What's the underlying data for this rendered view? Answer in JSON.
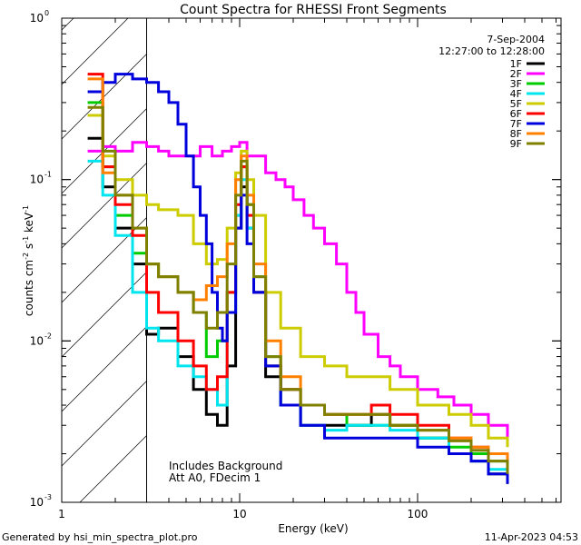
{
  "chart_data": {
    "type": "line",
    "title": "Count Spectra for RHESSI Front Segments",
    "xlabel": "Energy (keV)",
    "ylabel_main": "counts cm",
    "ylabel_exp1": "-2",
    "ylabel_s": " s",
    "ylabel_exp2": "-1",
    "ylabel_kev": " keV",
    "ylabel_exp3": "-1",
    "x_scale": "log",
    "y_scale": "log",
    "xlim": [
      1,
      640
    ],
    "ylim": [
      0.001,
      1
    ],
    "x_ticks": [
      {
        "value": 1,
        "label": "1"
      },
      {
        "value": 10,
        "label": "10"
      },
      {
        "value": 100,
        "label": "100"
      }
    ],
    "y_ticks": [
      {
        "value": 1,
        "base": "10",
        "exp": "0"
      },
      {
        "value": 0.1,
        "base": "10",
        "exp": "-1"
      },
      {
        "value": 0.01,
        "base": "10",
        "exp": "-2"
      },
      {
        "value": 0.001,
        "base": "10",
        "exp": "-3"
      }
    ],
    "hatched_region": [
      1,
      3
    ],
    "legend_placement": "top-right",
    "date": "7-Sep-2004",
    "time_range": "12:27:00 to 12:28:00",
    "annotation_line1": "Includes Background",
    "annotation_line2": "Att A0, FDecim 1",
    "footer_left": "Generated by hsi_min_spectra_plot.pro",
    "footer_right": "11-Apr-2023 04:53",
    "series": [
      {
        "name": "1F",
        "color": "#000000",
        "points": [
          [
            1.4,
            0.18
          ],
          [
            1.7,
            0.09
          ],
          [
            2.0,
            0.05
          ],
          [
            2.5,
            0.03
          ],
          [
            3.0,
            0.011
          ],
          [
            3.5,
            0.012
          ],
          [
            4.5,
            0.008
          ],
          [
            5.5,
            0.005
          ],
          [
            6.5,
            0.0035
          ],
          [
            7.5,
            0.003
          ],
          [
            8.5,
            0.007
          ],
          [
            9.5,
            0.05
          ],
          [
            10.2,
            0.09
          ],
          [
            11,
            0.05
          ],
          [
            12,
            0.02
          ],
          [
            14,
            0.006
          ],
          [
            17,
            0.004
          ],
          [
            22,
            0.003
          ],
          [
            30,
            0.003
          ],
          [
            40,
            0.003
          ],
          [
            55,
            0.0035
          ],
          [
            70,
            0.003
          ],
          [
            100,
            0.0025
          ],
          [
            150,
            0.002
          ],
          [
            200,
            0.0018
          ],
          [
            250,
            0.0015
          ],
          [
            320,
            0.0013
          ]
        ]
      },
      {
        "name": "2F",
        "color": "#ff00ff",
        "points": [
          [
            1.4,
            0.15
          ],
          [
            1.7,
            0.16
          ],
          [
            2.0,
            0.15
          ],
          [
            2.5,
            0.17
          ],
          [
            3.0,
            0.16
          ],
          [
            3.5,
            0.15
          ],
          [
            4,
            0.14
          ],
          [
            5,
            0.14
          ],
          [
            6,
            0.16
          ],
          [
            7,
            0.14
          ],
          [
            8,
            0.15
          ],
          [
            9,
            0.16
          ],
          [
            10,
            0.17
          ],
          [
            11,
            0.14
          ],
          [
            12,
            0.14
          ],
          [
            14,
            0.11
          ],
          [
            16,
            0.1
          ],
          [
            18,
            0.09
          ],
          [
            20,
            0.075
          ],
          [
            23,
            0.06
          ],
          [
            26,
            0.05
          ],
          [
            30,
            0.04
          ],
          [
            35,
            0.03
          ],
          [
            40,
            0.02
          ],
          [
            45,
            0.015
          ],
          [
            50,
            0.011
          ],
          [
            60,
            0.008
          ],
          [
            70,
            0.007
          ],
          [
            80,
            0.006
          ],
          [
            100,
            0.005
          ],
          [
            130,
            0.0045
          ],
          [
            160,
            0.004
          ],
          [
            200,
            0.0035
          ],
          [
            250,
            0.003
          ],
          [
            320,
            0.0025
          ]
        ]
      },
      {
        "name": "3F",
        "color": "#00cc00",
        "points": [
          [
            1.4,
            0.3
          ],
          [
            1.7,
            0.12
          ],
          [
            2.0,
            0.06
          ],
          [
            2.5,
            0.035
          ],
          [
            3.0,
            0.03
          ],
          [
            3.5,
            0.025
          ],
          [
            4.5,
            0.02
          ],
          [
            5.5,
            0.015
          ],
          [
            6.5,
            0.008
          ],
          [
            7.5,
            0.01
          ],
          [
            8.5,
            0.02
          ],
          [
            9.5,
            0.06
          ],
          [
            10.2,
            0.12
          ],
          [
            11,
            0.07
          ],
          [
            12,
            0.025
          ],
          [
            14,
            0.008
          ],
          [
            17,
            0.005
          ],
          [
            22,
            0.004
          ],
          [
            30,
            0.0035
          ],
          [
            40,
            0.003
          ],
          [
            55,
            0.003
          ],
          [
            70,
            0.003
          ],
          [
            100,
            0.0025
          ],
          [
            150,
            0.0022
          ],
          [
            200,
            0.002
          ],
          [
            250,
            0.0018
          ],
          [
            320,
            0.0015
          ]
        ]
      },
      {
        "name": "4F",
        "color": "#00e5ee",
        "points": [
          [
            1.4,
            0.13
          ],
          [
            1.7,
            0.08
          ],
          [
            2.0,
            0.045
          ],
          [
            2.5,
            0.02
          ],
          [
            3.0,
            0.012
          ],
          [
            3.5,
            0.01
          ],
          [
            4.5,
            0.007
          ],
          [
            5.5,
            0.006
          ],
          [
            6.5,
            0.005
          ],
          [
            7.5,
            0.004
          ],
          [
            8.5,
            0.015
          ],
          [
            9.5,
            0.06
          ],
          [
            10.2,
            0.1
          ],
          [
            11,
            0.05
          ],
          [
            12,
            0.02
          ],
          [
            14,
            0.007
          ],
          [
            17,
            0.004
          ],
          [
            22,
            0.003
          ],
          [
            30,
            0.0028
          ],
          [
            40,
            0.003
          ],
          [
            55,
            0.003
          ],
          [
            70,
            0.0028
          ],
          [
            100,
            0.0025
          ],
          [
            150,
            0.002
          ],
          [
            200,
            0.0018
          ],
          [
            250,
            0.0016
          ],
          [
            320,
            0.0014
          ]
        ]
      },
      {
        "name": "5F",
        "color": "#cccc00",
        "points": [
          [
            1.4,
            0.25
          ],
          [
            1.7,
            0.14
          ],
          [
            2.0,
            0.1
          ],
          [
            2.5,
            0.08
          ],
          [
            3.0,
            0.07
          ],
          [
            3.5,
            0.065
          ],
          [
            4.5,
            0.06
          ],
          [
            5.5,
            0.04
          ],
          [
            6.5,
            0.03
          ],
          [
            7.5,
            0.032
          ],
          [
            8.5,
            0.05
          ],
          [
            9.5,
            0.11
          ],
          [
            10.2,
            0.15
          ],
          [
            11,
            0.1
          ],
          [
            12,
            0.06
          ],
          [
            14,
            0.02
          ],
          [
            17,
            0.012
          ],
          [
            22,
            0.008
          ],
          [
            30,
            0.007
          ],
          [
            40,
            0.006
          ],
          [
            55,
            0.006
          ],
          [
            70,
            0.005
          ],
          [
            100,
            0.004
          ],
          [
            150,
            0.0035
          ],
          [
            200,
            0.003
          ],
          [
            250,
            0.0025
          ],
          [
            320,
            0.0022
          ]
        ]
      },
      {
        "name": "6F",
        "color": "#ff0000",
        "points": [
          [
            1.4,
            0.45
          ],
          [
            1.7,
            0.12
          ],
          [
            2.0,
            0.07
          ],
          [
            2.5,
            0.045
          ],
          [
            3.0,
            0.02
          ],
          [
            3.5,
            0.015
          ],
          [
            4.5,
            0.01
          ],
          [
            5.5,
            0.007
          ],
          [
            6.5,
            0.005
          ],
          [
            7.5,
            0.006
          ],
          [
            8.5,
            0.02
          ],
          [
            9.5,
            0.07
          ],
          [
            10.2,
            0.12
          ],
          [
            11,
            0.06
          ],
          [
            12,
            0.02
          ],
          [
            14,
            0.007
          ],
          [
            17,
            0.005
          ],
          [
            22,
            0.004
          ],
          [
            30,
            0.0035
          ],
          [
            40,
            0.0035
          ],
          [
            55,
            0.004
          ],
          [
            70,
            0.0035
          ],
          [
            100,
            0.003
          ],
          [
            150,
            0.0025
          ],
          [
            200,
            0.0022
          ],
          [
            250,
            0.002
          ],
          [
            320,
            0.0017
          ]
        ]
      },
      {
        "name": "7F",
        "color": "#0000dd",
        "points": [
          [
            1.4,
            0.35
          ],
          [
            1.7,
            0.4
          ],
          [
            2.0,
            0.45
          ],
          [
            2.5,
            0.42
          ],
          [
            3.0,
            0.4
          ],
          [
            3.5,
            0.35
          ],
          [
            4,
            0.3
          ],
          [
            4.5,
            0.22
          ],
          [
            5,
            0.14
          ],
          [
            5.5,
            0.09
          ],
          [
            6,
            0.06
          ],
          [
            6.5,
            0.04
          ],
          [
            7,
            0.02
          ],
          [
            7.5,
            0.012
          ],
          [
            8,
            0.01
          ],
          [
            8.5,
            0.015
          ],
          [
            9.5,
            0.05
          ],
          [
            10.2,
            0.08
          ],
          [
            11,
            0.04
          ],
          [
            12,
            0.02
          ],
          [
            14,
            0.007
          ],
          [
            17,
            0.004
          ],
          [
            22,
            0.003
          ],
          [
            30,
            0.0025
          ],
          [
            40,
            0.0025
          ],
          [
            55,
            0.0025
          ],
          [
            70,
            0.0025
          ],
          [
            100,
            0.0022
          ],
          [
            150,
            0.002
          ],
          [
            200,
            0.0018
          ],
          [
            250,
            0.0015
          ],
          [
            320,
            0.0013
          ]
        ]
      },
      {
        "name": "8F",
        "color": "#ff8000",
        "points": [
          [
            1.4,
            0.42
          ],
          [
            1.7,
            0.11
          ],
          [
            2.0,
            0.08
          ],
          [
            2.5,
            0.05
          ],
          [
            3.0,
            0.03
          ],
          [
            3.5,
            0.025
          ],
          [
            4.5,
            0.02
          ],
          [
            5.5,
            0.018
          ],
          [
            6.5,
            0.022
          ],
          [
            7.5,
            0.025
          ],
          [
            8.5,
            0.04
          ],
          [
            9.5,
            0.1
          ],
          [
            10.2,
            0.14
          ],
          [
            11,
            0.08
          ],
          [
            12,
            0.03
          ],
          [
            14,
            0.01
          ],
          [
            17,
            0.006
          ],
          [
            22,
            0.004
          ],
          [
            30,
            0.0035
          ],
          [
            40,
            0.0035
          ],
          [
            55,
            0.0035
          ],
          [
            70,
            0.003
          ],
          [
            100,
            0.0028
          ],
          [
            150,
            0.0025
          ],
          [
            200,
            0.0022
          ],
          [
            250,
            0.002
          ],
          [
            320,
            0.0017
          ]
        ]
      },
      {
        "name": "9F",
        "color": "#808000",
        "points": [
          [
            1.4,
            0.28
          ],
          [
            1.7,
            0.15
          ],
          [
            2.0,
            0.08
          ],
          [
            2.5,
            0.05
          ],
          [
            3.0,
            0.03
          ],
          [
            3.5,
            0.025
          ],
          [
            4.5,
            0.02
          ],
          [
            5.5,
            0.015
          ],
          [
            6.5,
            0.012
          ],
          [
            7.5,
            0.015
          ],
          [
            8.5,
            0.03
          ],
          [
            9.5,
            0.08
          ],
          [
            10.2,
            0.13
          ],
          [
            11,
            0.07
          ],
          [
            12,
            0.025
          ],
          [
            14,
            0.008
          ],
          [
            17,
            0.005
          ],
          [
            22,
            0.004
          ],
          [
            30,
            0.0035
          ],
          [
            40,
            0.0035
          ],
          [
            55,
            0.0035
          ],
          [
            70,
            0.003
          ],
          [
            100,
            0.0028
          ],
          [
            150,
            0.0024
          ],
          [
            200,
            0.0021
          ],
          [
            250,
            0.0018
          ],
          [
            320,
            0.0015
          ]
        ]
      }
    ]
  }
}
